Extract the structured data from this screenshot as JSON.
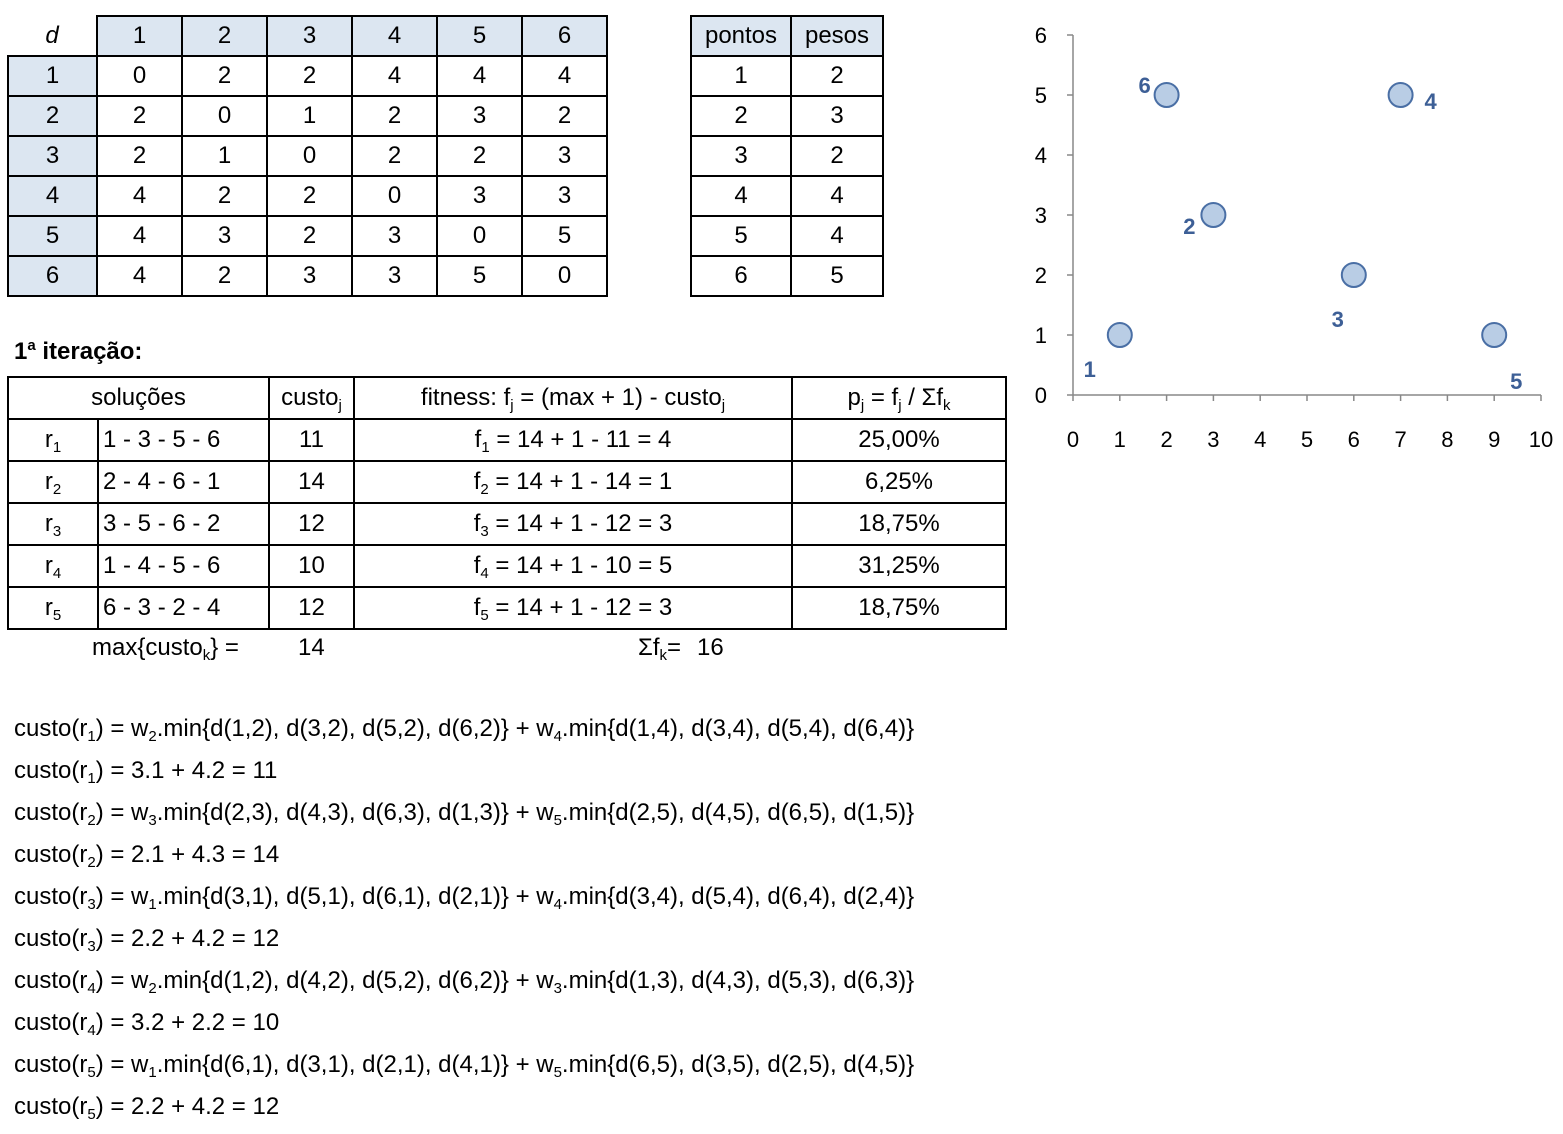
{
  "distance_table": {
    "corner": "d",
    "col_headers": [
      "1",
      "2",
      "3",
      "4",
      "5",
      "6"
    ],
    "rows": [
      {
        "label": "1",
        "cells": [
          "0",
          "2",
          "2",
          "4",
          "4",
          "4"
        ]
      },
      {
        "label": "2",
        "cells": [
          "2",
          "0",
          "1",
          "2",
          "3",
          "2"
        ]
      },
      {
        "label": "3",
        "cells": [
          "2",
          "1",
          "0",
          "2",
          "2",
          "3"
        ]
      },
      {
        "label": "4",
        "cells": [
          "4",
          "2",
          "2",
          "0",
          "3",
          "3"
        ]
      },
      {
        "label": "5",
        "cells": [
          "4",
          "3",
          "2",
          "3",
          "0",
          "5"
        ]
      },
      {
        "label": "6",
        "cells": [
          "4",
          "2",
          "3",
          "3",
          "5",
          "0"
        ]
      }
    ]
  },
  "weights_table": {
    "headers": [
      "pontos",
      "pesos"
    ],
    "rows": [
      [
        "1",
        "2"
      ],
      [
        "2",
        "3"
      ],
      [
        "3",
        "2"
      ],
      [
        "4",
        "4"
      ],
      [
        "5",
        "4"
      ],
      [
        "6",
        "5"
      ]
    ]
  },
  "iteration": {
    "title_number": "1",
    "title_sup": "a",
    "title_rest": " iteração:",
    "headers": {
      "solucoes": "soluções",
      "custo": "custo",
      "custo_sub": "j",
      "fitness": {
        "a": "fitness: f",
        "a_sub": "j",
        "b": " = (max + 1) - custo",
        "b_sub": "j"
      },
      "prob": {
        "a": "p",
        "a_sub": "j",
        "b": " = f",
        "b_sub": "j",
        "c": " / Σf",
        "c_sub": "k"
      }
    },
    "rows": [
      {
        "r": "r",
        "r_sub": "1",
        "sol": "1 - 3 - 5 - 6",
        "custo": "11",
        "f": "f",
        "f_sub": "1",
        "f_rest": " = 14 + 1 - 11 = 4",
        "p": "25,00%"
      },
      {
        "r": "r",
        "r_sub": "2",
        "sol": "2 - 4 - 6 - 1",
        "custo": "14",
        "f": "f",
        "f_sub": "2",
        "f_rest": " = 14 + 1 - 14 = 1",
        "p": "6,25%"
      },
      {
        "r": "r",
        "r_sub": "3",
        "sol": "3 - 5 - 6 - 2",
        "custo": "12",
        "f": "f",
        "f_sub": "3",
        "f_rest": " = 14 + 1 - 12 = 3",
        "p": "18,75%"
      },
      {
        "r": "r",
        "r_sub": "4",
        "sol": "1 - 4 - 5 - 6",
        "custo": "10",
        "f": "f",
        "f_sub": "4",
        "f_rest": " = 14 + 1 - 10 = 5",
        "p": "31,25%"
      },
      {
        "r": "r",
        "r_sub": "5",
        "sol": "6 - 3 - 2 - 4",
        "custo": "12",
        "f": "f",
        "f_sub": "5",
        "f_rest": " = 14 + 1 - 12 = 3",
        "p": "18,75%"
      }
    ],
    "max_label": {
      "a": "max{custo",
      "sub": "k",
      "b": "} ="
    },
    "max_value": "14",
    "sum_label": {
      "a": "Σf",
      "sub": "k",
      "b": "="
    },
    "sum_value": "16"
  },
  "formulas": [
    [
      [
        "custo(r",
        ""
      ],
      [
        "1",
        "s"
      ],
      [
        ") = w",
        ""
      ],
      [
        "2",
        "s"
      ],
      [
        ".min{d(1,2), d(3,2), d(5,2), d(6,2)} + w",
        ""
      ],
      [
        "4",
        "s"
      ],
      [
        ".min{d(1,4), d(3,4), d(5,4), d(6,4)}",
        ""
      ]
    ],
    [
      [
        "custo(r",
        ""
      ],
      [
        "1",
        "s"
      ],
      [
        ") = 3.1 + 4.2 = 11",
        ""
      ]
    ],
    [
      [
        "custo(r",
        ""
      ],
      [
        "2",
        "s"
      ],
      [
        ") = w",
        ""
      ],
      [
        "3",
        "s"
      ],
      [
        ".min{d(2,3), d(4,3), d(6,3), d(1,3)} + w",
        ""
      ],
      [
        "5",
        "s"
      ],
      [
        ".min{d(2,5), d(4,5), d(6,5), d(1,5)}",
        ""
      ]
    ],
    [
      [
        "custo(r",
        ""
      ],
      [
        "2",
        "s"
      ],
      [
        ") = 2.1 + 4.3 = 14",
        ""
      ]
    ],
    [
      [
        "custo(r",
        ""
      ],
      [
        "3",
        "s"
      ],
      [
        ") = w",
        ""
      ],
      [
        "1",
        "s"
      ],
      [
        ".min{d(3,1), d(5,1), d(6,1), d(2,1)} + w",
        ""
      ],
      [
        "4",
        "s"
      ],
      [
        ".min{d(3,4), d(5,4), d(6,4), d(2,4)}",
        ""
      ]
    ],
    [
      [
        "custo(r",
        ""
      ],
      [
        "3",
        "s"
      ],
      [
        ") = 2.2 + 4.2 = 12",
        ""
      ]
    ],
    [
      [
        "custo(r",
        ""
      ],
      [
        "4",
        "s"
      ],
      [
        ") = w",
        ""
      ],
      [
        "2",
        "s"
      ],
      [
        ".min{d(1,2), d(4,2), d(5,2), d(6,2)} + w",
        ""
      ],
      [
        "3",
        "s"
      ],
      [
        ".min{d(1,3), d(4,3), d(5,3), d(6,3)}",
        ""
      ]
    ],
    [
      [
        "custo(r",
        ""
      ],
      [
        "4",
        "s"
      ],
      [
        ") = 3.2 + 2.2 = 10",
        ""
      ]
    ],
    [
      [
        "custo(r",
        ""
      ],
      [
        "5",
        "s"
      ],
      [
        ") = w",
        ""
      ],
      [
        "1",
        "s"
      ],
      [
        ".min{d(6,1), d(3,1), d(2,1), d(4,1)} + w",
        ""
      ],
      [
        "5",
        "s"
      ],
      [
        ".min{d(6,5), d(3,5), d(2,5), d(4,5)}",
        ""
      ]
    ],
    [
      [
        "custo(r",
        ""
      ],
      [
        "5",
        "s"
      ],
      [
        ") = 2.2 + 4.2 = 12",
        ""
      ]
    ]
  ],
  "chart_data": {
    "type": "scatter",
    "xlim": [
      0,
      10
    ],
    "ylim": [
      0,
      6
    ],
    "x_ticks": [
      "0",
      "1",
      "2",
      "3",
      "4",
      "5",
      "6",
      "7",
      "8",
      "9",
      "10"
    ],
    "y_ticks": [
      "0",
      "1",
      "2",
      "3",
      "4",
      "5",
      "6"
    ],
    "points": [
      {
        "label": "1",
        "x": 1,
        "y": 1
      },
      {
        "label": "2",
        "x": 3,
        "y": 3
      },
      {
        "label": "3",
        "x": 6,
        "y": 2
      },
      {
        "label": "4",
        "x": 7,
        "y": 5
      },
      {
        "label": "5",
        "x": 9,
        "y": 1
      },
      {
        "label": "6",
        "x": 2,
        "y": 5
      }
    ],
    "marker_fill": "#b9cde5",
    "marker_stroke": "#4a6fa5",
    "label_color": "#3d5f96",
    "axis_color": "#888888"
  }
}
